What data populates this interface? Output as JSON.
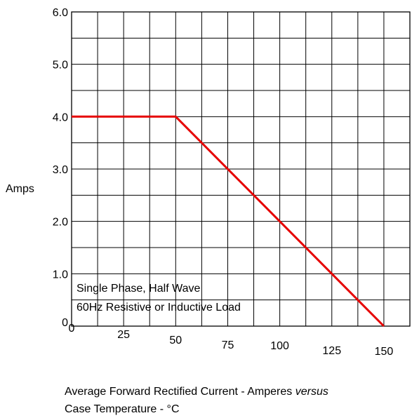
{
  "chart_data": {
    "type": "line",
    "title": "",
    "xlabel": "",
    "ylabel": "Amps",
    "x_ticks": [
      "0",
      "25",
      "50",
      "75",
      "100",
      "125",
      "150"
    ],
    "y_ticks": [
      "0",
      "1.0",
      "2.0",
      "3.0",
      "4.0",
      "5.0",
      "6.0"
    ],
    "xlim": [
      0,
      162.5
    ],
    "ylim": [
      0,
      6.0
    ],
    "grid": true,
    "grid_x_step": 12.5,
    "grid_y_step": 0.5,
    "series": [
      {
        "color": "#e60000",
        "points": [
          {
            "x": 0,
            "y": 4.0
          },
          {
            "x": 50,
            "y": 4.0
          },
          {
            "x": 150,
            "y": 0
          }
        ]
      }
    ],
    "annotation": [
      "Single Phase, Half Wave",
      "60Hz Resistive or Inductive Load"
    ],
    "caption": {
      "line1": "Average Forward Rectified Current  -  Amperes",
      "line1_italic": "versus",
      "line2": "Case Temperature  - °C"
    }
  }
}
